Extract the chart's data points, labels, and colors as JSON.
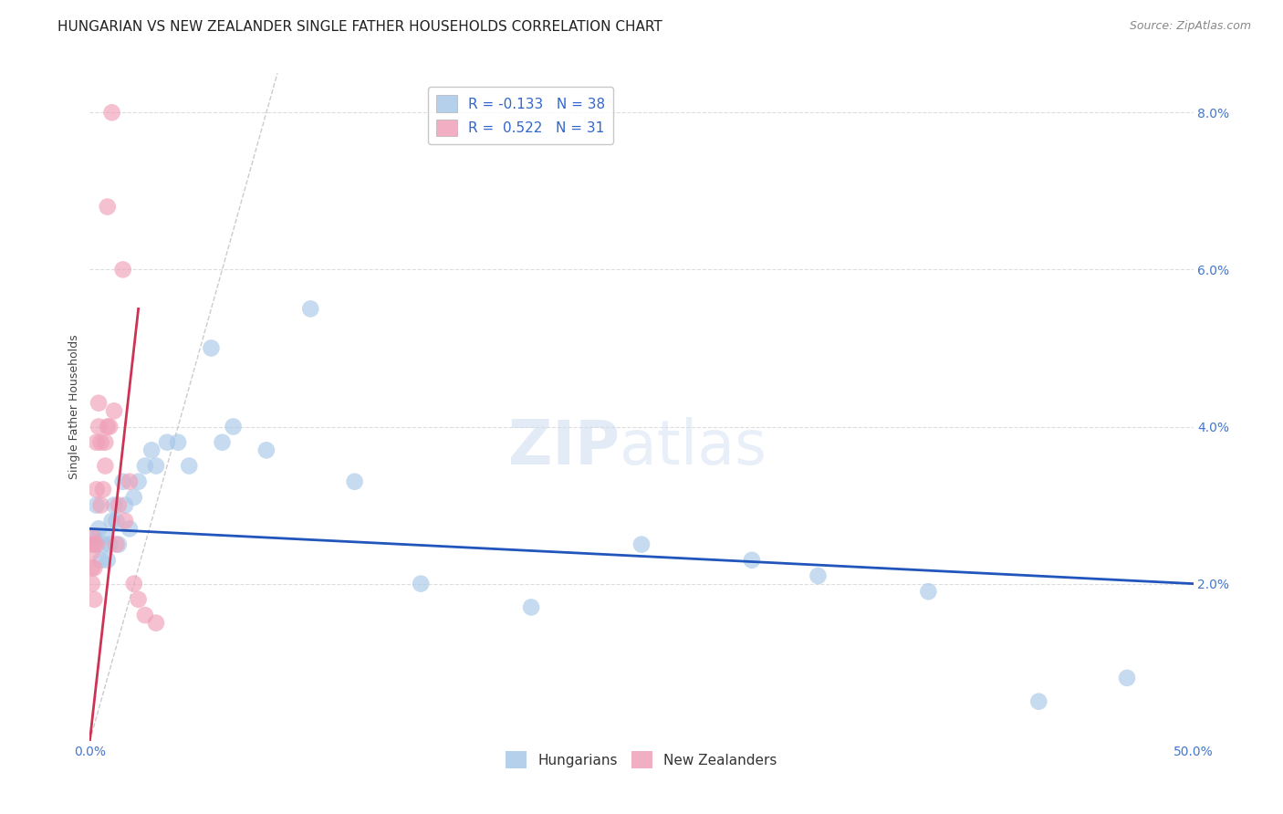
{
  "title": "HUNGARIAN VS NEW ZEALANDER SINGLE FATHER HOUSEHOLDS CORRELATION CHART",
  "source": "Source: ZipAtlas.com",
  "ylabel": "Single Father Households",
  "xlim": [
    0.0,
    0.5
  ],
  "ylim": [
    0.0,
    0.085
  ],
  "yticks": [
    0.0,
    0.02,
    0.04,
    0.06,
    0.08
  ],
  "ytick_labels_right": [
    "",
    "2.0%",
    "4.0%",
    "6.0%",
    "8.0%"
  ],
  "xticks": [
    0.0,
    0.1,
    0.2,
    0.3,
    0.4,
    0.5
  ],
  "xtick_labels": [
    "0.0%",
    "",
    "",
    "",
    "",
    "50.0%"
  ],
  "blue_color": "#a8c8e8",
  "pink_color": "#f0a0b8",
  "blue_line_color": "#2255bb",
  "pink_line_color": "#cc3355",
  "ref_line_color": "#cccccc",
  "grid_color": "#dddddd",
  "tick_color": "#4477cc",
  "legend_blue_label": "R = -0.133   N = 38",
  "legend_pink_label": "R =  0.522   N = 31",
  "bottom_legend_blue": "Hungarians",
  "bottom_legend_pink": "New Zealanders",
  "title_fontsize": 11,
  "axis_label_fontsize": 9,
  "tick_fontsize": 10,
  "blue_line_x0": 0.0,
  "blue_line_y0": 0.027,
  "blue_line_x1": 0.5,
  "blue_line_y1": 0.02,
  "pink_line_x0": 0.0,
  "pink_line_y0": 0.0,
  "pink_line_x1": 0.022,
  "pink_line_y1": 0.055,
  "ref_line_x0": 0.0,
  "ref_line_y0": 0.0,
  "ref_line_x1": 0.085,
  "ref_line_y1": 0.085,
  "blue_scatter_x": [
    0.001,
    0.002,
    0.003,
    0.004,
    0.005,
    0.006,
    0.007,
    0.008,
    0.009,
    0.01,
    0.011,
    0.012,
    0.013,
    0.015,
    0.016,
    0.018,
    0.02,
    0.022,
    0.025,
    0.028,
    0.03,
    0.035,
    0.04,
    0.045,
    0.055,
    0.06,
    0.065,
    0.08,
    0.1,
    0.12,
    0.15,
    0.2,
    0.25,
    0.3,
    0.33,
    0.38,
    0.43,
    0.47
  ],
  "blue_scatter_y": [
    0.025,
    0.026,
    0.03,
    0.027,
    0.023,
    0.025,
    0.026,
    0.023,
    0.025,
    0.028,
    0.03,
    0.028,
    0.025,
    0.033,
    0.03,
    0.027,
    0.031,
    0.033,
    0.035,
    0.037,
    0.035,
    0.038,
    0.038,
    0.035,
    0.05,
    0.038,
    0.04,
    0.037,
    0.055,
    0.033,
    0.02,
    0.017,
    0.025,
    0.023,
    0.021,
    0.019,
    0.005,
    0.008
  ],
  "pink_scatter_x": [
    0.001,
    0.001,
    0.001,
    0.001,
    0.002,
    0.002,
    0.002,
    0.003,
    0.003,
    0.003,
    0.004,
    0.004,
    0.005,
    0.005,
    0.006,
    0.007,
    0.007,
    0.008,
    0.008,
    0.009,
    0.01,
    0.011,
    0.012,
    0.013,
    0.015,
    0.016,
    0.018,
    0.02,
    0.022,
    0.025,
    0.03
  ],
  "pink_scatter_y": [
    0.02,
    0.022,
    0.024,
    0.026,
    0.018,
    0.022,
    0.025,
    0.025,
    0.032,
    0.038,
    0.04,
    0.043,
    0.03,
    0.038,
    0.032,
    0.035,
    0.038,
    0.04,
    0.068,
    0.04,
    0.08,
    0.042,
    0.025,
    0.03,
    0.06,
    0.028,
    0.033,
    0.02,
    0.018,
    0.016,
    0.015
  ]
}
